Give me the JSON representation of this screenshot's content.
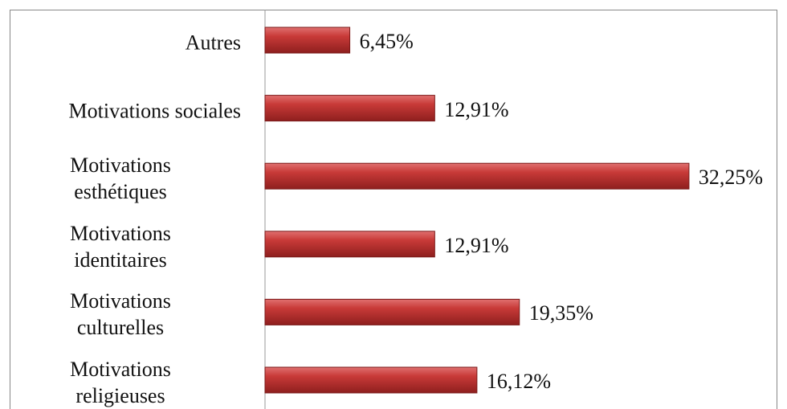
{
  "chart_data": {
    "type": "bar",
    "orientation": "horizontal",
    "categories": [
      "Autres",
      "Motivations sociales",
      "Motivations\nesthétiques",
      "Motivations\nidentitaires",
      "Motivations\nculturelles",
      "Motivations\nreligieuses"
    ],
    "values": [
      6.45,
      12.91,
      32.25,
      12.91,
      19.35,
      16.12
    ],
    "value_labels": [
      "6,45%",
      "12,91%",
      "32,25%",
      "12,91%",
      "19,35%",
      "16,12%"
    ],
    "color": "#c0302f"
  }
}
